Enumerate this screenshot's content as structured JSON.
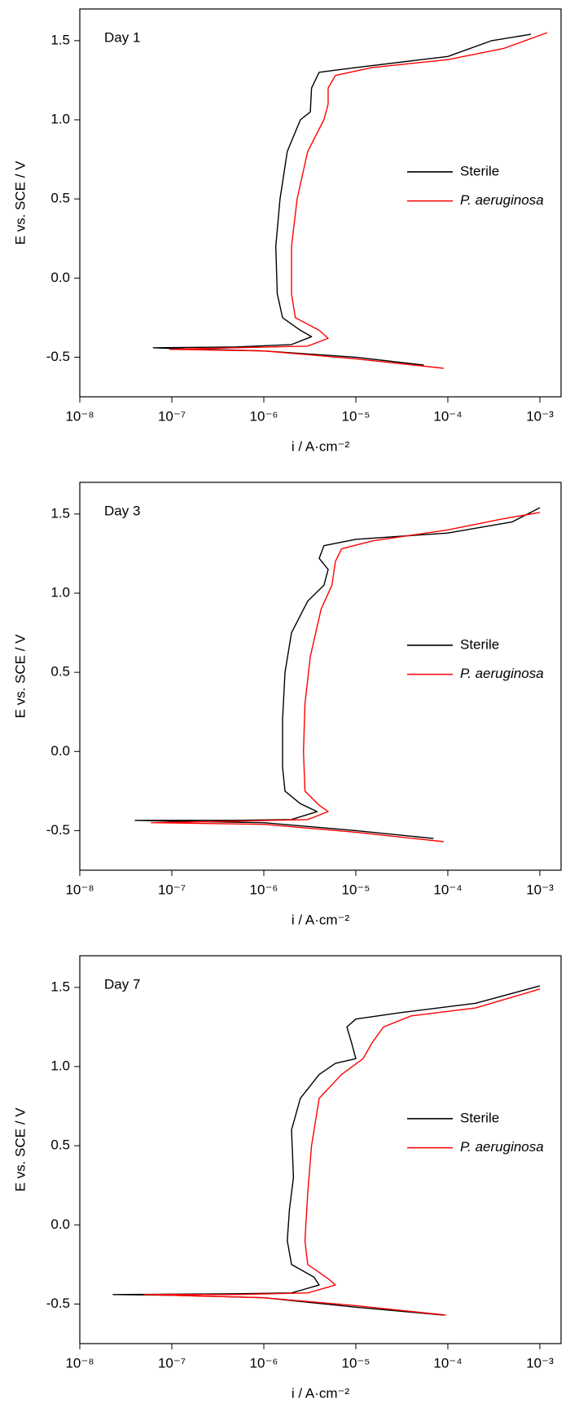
{
  "chart_data": [
    {
      "type": "line",
      "annotation": "Day 1",
      "xlabel": "i / A·cm⁻²",
      "ylabel": "E vs. SCE / V",
      "xscale": "log",
      "legend": "center right",
      "xlim": [
        1e-08,
        0.0017
      ],
      "ylim": [
        -0.75,
        1.7
      ],
      "xticks": [
        {
          "value": 1e-08,
          "label": "10⁻⁸"
        },
        {
          "value": 1e-07,
          "label": "10⁻⁷"
        },
        {
          "value": 1e-06,
          "label": "10⁻⁶"
        },
        {
          "value": 1e-05,
          "label": "10⁻⁵"
        },
        {
          "value": 0.0001,
          "label": "10⁻⁴"
        },
        {
          "value": 0.001,
          "label": "10⁻³"
        }
      ],
      "yticks": [
        -0.5,
        {
          "value": 0,
          "label": "0.0"
        },
        0.5,
        {
          "value": 1,
          "label": "1.0"
        },
        1.5
      ],
      "series": [
        {
          "name": "Sterile",
          "color": "#000000",
          "x": [
            5.5e-05,
            1e-05,
            1e-06,
            1e-07,
            6.3e-08,
            5e-07,
            2e-06,
            3.3e-06,
            2.5e-06,
            1.6e-06,
            1.4e-06,
            1.35e-06,
            1.5e-06,
            1.8e-06,
            2.5e-06,
            3.2e-06,
            3.3e-06,
            4e-06,
            1e-05,
            0.0001,
            0.0003,
            0.0008
          ],
          "values": [
            -0.55,
            -0.5,
            -0.46,
            -0.445,
            -0.44,
            -0.435,
            -0.42,
            -0.37,
            -0.33,
            -0.25,
            -0.1,
            0.2,
            0.5,
            0.8,
            1.0,
            1.05,
            1.2,
            1.3,
            1.33,
            1.4,
            1.5,
            1.54
          ]
        },
        {
          "name": "P. aeruginosa",
          "color": "#ff0000",
          "x": [
            9e-05,
            1e-05,
            1e-06,
            9.5e-08,
            5e-07,
            3e-06,
            5e-06,
            4e-06,
            2.2e-06,
            2e-06,
            2e-06,
            2.3e-06,
            3e-06,
            4.5e-06,
            5e-06,
            5e-06,
            6e-06,
            1.5e-05,
            0.0001,
            0.0004,
            0.0012
          ],
          "values": [
            -0.57,
            -0.51,
            -0.46,
            -0.45,
            -0.44,
            -0.43,
            -0.38,
            -0.33,
            -0.25,
            -0.1,
            0.2,
            0.5,
            0.8,
            1.0,
            1.1,
            1.2,
            1.28,
            1.33,
            1.38,
            1.45,
            1.55
          ]
        }
      ]
    },
    {
      "type": "line",
      "annotation": "Day 3",
      "xlabel": "i / A·cm⁻²",
      "ylabel": "E vs. SCE / V",
      "xscale": "log",
      "legend": "center right",
      "xlim": [
        1e-08,
        0.0017
      ],
      "ylim": [
        -0.75,
        1.7
      ],
      "xticks": [
        {
          "value": 1e-08,
          "label": "10⁻⁸"
        },
        {
          "value": 1e-07,
          "label": "10⁻⁷"
        },
        {
          "value": 1e-06,
          "label": "10⁻⁶"
        },
        {
          "value": 1e-05,
          "label": "10⁻⁵"
        },
        {
          "value": 0.0001,
          "label": "10⁻⁴"
        },
        {
          "value": 0.001,
          "label": "10⁻³"
        }
      ],
      "yticks": [
        -0.5,
        {
          "value": 0,
          "label": "0.0"
        },
        0.5,
        {
          "value": 1,
          "label": "1.0"
        },
        1.5
      ],
      "series": [
        {
          "name": "Sterile",
          "color": "#000000",
          "x": [
            7e-05,
            1e-05,
            1e-06,
            1e-07,
            4e-08,
            5e-07,
            2e-06,
            3.8e-06,
            2.5e-06,
            1.7e-06,
            1.6e-06,
            1.6e-06,
            1.7e-06,
            2e-06,
            3e-06,
            4.5e-06,
            5e-06,
            4e-06,
            4.5e-06,
            1e-05,
            0.0001,
            0.0005,
            0.001
          ],
          "values": [
            -0.55,
            -0.5,
            -0.45,
            -0.44,
            -0.435,
            -0.435,
            -0.43,
            -0.38,
            -0.33,
            -0.25,
            -0.1,
            0.2,
            0.5,
            0.75,
            0.95,
            1.05,
            1.15,
            1.22,
            1.3,
            1.34,
            1.38,
            1.45,
            1.54
          ]
        },
        {
          "name": "P. aeruginosa",
          "color": "#ff0000",
          "x": [
            9e-05,
            1e-05,
            1e-06,
            6e-08,
            5e-07,
            3e-06,
            5e-06,
            4e-06,
            2.8e-06,
            2.7e-06,
            2.8e-06,
            3.2e-06,
            4.2e-06,
            5.5e-06,
            6e-06,
            7e-06,
            1.5e-05,
            0.0001,
            0.0004,
            0.001
          ],
          "values": [
            -0.57,
            -0.51,
            -0.46,
            -0.45,
            -0.44,
            -0.43,
            -0.38,
            -0.34,
            -0.25,
            0,
            0.3,
            0.6,
            0.9,
            1.05,
            1.2,
            1.28,
            1.33,
            1.4,
            1.47,
            1.51
          ]
        }
      ]
    },
    {
      "type": "line",
      "annotation": "Day 7",
      "xlabel": "i / A·cm⁻²",
      "ylabel": "E vs. SCE / V",
      "xscale": "log",
      "legend": "center right",
      "xlim": [
        1e-08,
        0.0017
      ],
      "ylim": [
        -0.75,
        1.7
      ],
      "xticks": [
        {
          "value": 1e-08,
          "label": "10⁻⁸"
        },
        {
          "value": 1e-07,
          "label": "10⁻⁷"
        },
        {
          "value": 1e-06,
          "label": "10⁻⁶"
        },
        {
          "value": 1e-05,
          "label": "10⁻⁵"
        },
        {
          "value": 0.0001,
          "label": "10⁻⁴"
        },
        {
          "value": 0.001,
          "label": "10⁻³"
        }
      ],
      "yticks": [
        -0.5,
        {
          "value": 0,
          "label": "0.0"
        },
        0.5,
        {
          "value": 1,
          "label": "1.0"
        },
        1.5
      ],
      "series": [
        {
          "name": "Sterile",
          "color": "#000000",
          "x": [
            9e-05,
            1e-05,
            1e-06,
            1e-07,
            2.3e-08,
            5e-07,
            2e-06,
            4e-06,
            3.5e-06,
            2e-06,
            1.8e-06,
            1.9e-06,
            2.1e-06,
            2e-06,
            2.5e-06,
            4e-06,
            6e-06,
            1e-05,
            9e-06,
            8e-06,
            1e-05,
            3e-05,
            0.0002,
            0.001
          ],
          "values": [
            -0.57,
            -0.52,
            -0.46,
            -0.445,
            -0.44,
            -0.435,
            -0.43,
            -0.38,
            -0.33,
            -0.25,
            -0.1,
            0.1,
            0.3,
            0.6,
            0.8,
            0.95,
            1.02,
            1.05,
            1.15,
            1.25,
            1.3,
            1.34,
            1.4,
            1.51
          ]
        },
        {
          "name": "P. aeruginosa",
          "color": "#ff0000",
          "x": [
            9.5e-05,
            1e-05,
            1e-06,
            5e-08,
            5e-07,
            3e-06,
            6e-06,
            5e-06,
            3e-06,
            2.8e-06,
            3e-06,
            3.3e-06,
            4e-06,
            7e-06,
            1.2e-05,
            1.5e-05,
            2e-05,
            4e-05,
            0.0002,
            0.001
          ],
          "values": [
            -0.57,
            -0.51,
            -0.46,
            -0.44,
            -0.44,
            -0.43,
            -0.38,
            -0.34,
            -0.25,
            -0.1,
            0.2,
            0.5,
            0.8,
            0.95,
            1.05,
            1.15,
            1.25,
            1.32,
            1.37,
            1.49
          ]
        }
      ]
    }
  ]
}
